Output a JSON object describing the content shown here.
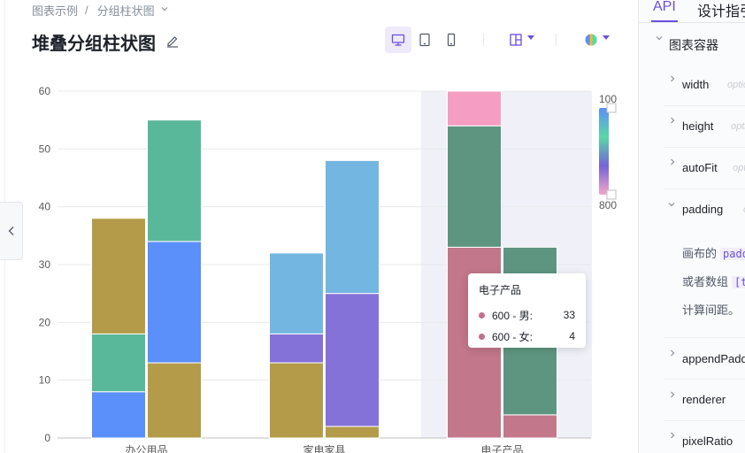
{
  "breadcrumb": {
    "root": "图表示例",
    "separator": "/",
    "current": "分组柱状图"
  },
  "page": {
    "title": "堆叠分组柱状图"
  },
  "colors": {
    "accent": "#6b4fe0",
    "legend_gradient": [
      "#5b8ff9",
      "#5ad8a6",
      "#7564d8",
      "#f4a6c8"
    ]
  },
  "chart_data": {
    "type": "bar",
    "stacked": true,
    "grouped": true,
    "categories": [
      "办公用品",
      "家电家具",
      "电子产品"
    ],
    "ylim": [
      0,
      60
    ],
    "yticks": [
      "0",
      "10",
      "20",
      "30",
      "40",
      "50",
      "60"
    ],
    "grid": true,
    "highlight_category": "电子产品",
    "groups": [
      {
        "stack": "男",
        "segments": [
          {
            "category": "办公用品",
            "parts": [
              {
                "value": 8,
                "color": "#5b8ff9"
              },
              {
                "value": 10,
                "color": "#5ab89a"
              },
              {
                "value": 20,
                "color": "#b39b4a"
              }
            ]
          },
          {
            "category": "家电家具",
            "parts": [
              {
                "value": 13,
                "color": "#b39b4a"
              },
              {
                "value": 5,
                "color": "#8572d8"
              },
              {
                "value": 14,
                "color": "#74b6e2"
              }
            ]
          },
          {
            "category": "电子产品",
            "parts": [
              {
                "value": 33,
                "color": "#c2778a"
              },
              {
                "value": 21,
                "color": "#5e9580"
              },
              {
                "value": 6,
                "color": "#f59dc3"
              }
            ]
          }
        ]
      },
      {
        "stack": "女",
        "segments": [
          {
            "category": "办公用品",
            "parts": [
              {
                "value": 13,
                "color": "#b39b4a"
              },
              {
                "value": 21,
                "color": "#5b8ff9"
              },
              {
                "value": 21,
                "color": "#5ab89a"
              }
            ]
          },
          {
            "category": "家电家具",
            "parts": [
              {
                "value": 2,
                "color": "#b39b4a"
              },
              {
                "value": 23,
                "color": "#8572d8"
              },
              {
                "value": 23,
                "color": "#74b6e2"
              }
            ]
          },
          {
            "category": "电子产品",
            "parts": [
              {
                "value": 4,
                "color": "#c2778a"
              },
              {
                "value": 29,
                "color": "#5e9580"
              },
              {
                "value": 0,
                "color": "#f59dc3"
              }
            ]
          }
        ]
      }
    ],
    "legend": {
      "type": "continuous",
      "max_label": "100",
      "min_label": "800",
      "placement": "right"
    }
  },
  "tooltip": {
    "title": "电子产品",
    "rows": [
      {
        "name": "600 - 男:",
        "value": "33"
      },
      {
        "name": "600 - 女:",
        "value": "4"
      }
    ]
  },
  "api_panel": {
    "tabs": [
      "API",
      "设计指引"
    ],
    "group": "图表容器",
    "items": [
      {
        "name": "width",
        "opt": "optional"
      },
      {
        "name": "height",
        "opt": "optional"
      },
      {
        "name": "autoFit",
        "opt": "optional"
      },
      {
        "name": "padding",
        "opt": "optional"
      },
      {
        "name": "appendPadding",
        "opt": ""
      },
      {
        "name": "renderer",
        "opt": ""
      },
      {
        "name": "pixelRatio",
        "opt": ""
      }
    ],
    "padding_desc": {
      "line1": "画布的",
      "line1_code": "padding",
      "line2": "或者数组",
      "line2_code": "[top, right]",
      "line3": "计算间距。"
    }
  }
}
